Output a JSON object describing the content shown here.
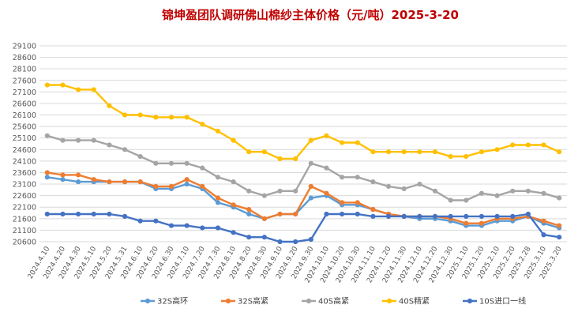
{
  "chart_data": {
    "type": "line",
    "title": "锦坤盈团队调研佛山棉纱主体价格（元/吨）2025-3-20",
    "xlabel": "",
    "ylabel": "",
    "ylim": [
      20600,
      29100
    ],
    "yticks": [
      20600,
      21100,
      21600,
      22100,
      22600,
      23100,
      23600,
      24100,
      24600,
      25100,
      25600,
      26100,
      26600,
      27100,
      27600,
      28100,
      28600,
      29100
    ],
    "grid": true,
    "legend_position": "bottom",
    "categories": [
      "2024.4.10",
      "2024.4.20",
      "2024.4.30",
      "2024.5.10",
      "2024.5.20",
      "2024.5.31",
      "2024.6.10",
      "2024.6.20",
      "2024.6.30",
      "2024.7.10",
      "2024.7.20",
      "2024.7.30",
      "2024.8.10",
      "2024.8.20",
      "2024.8.30",
      "2024.9.10",
      "2024.9.20",
      "2024.9.30",
      "2024.10.10",
      "2024.10.20",
      "2024.10.30",
      "2024.11.10",
      "2024.11.20",
      "2024.11.30",
      "2024.12.10",
      "2024.12.20",
      "2024.12.30",
      "2025.1.10",
      "2025.1.20",
      "2025.2.10",
      "2025.2.20",
      "2025.2.28",
      "2025.3.10",
      "2025.3.20"
    ],
    "series": [
      {
        "name": "32S高环",
        "color": "#5b9bd5",
        "values": [
          23400,
          23300,
          23200,
          23200,
          23200,
          23200,
          23200,
          22900,
          22900,
          23100,
          22900,
          22300,
          22100,
          21800,
          21600,
          21800,
          21800,
          22500,
          22600,
          22200,
          22200,
          22000,
          21800,
          21700,
          21600,
          21600,
          21500,
          21300,
          21300,
          21500,
          21500,
          21700,
          21400,
          21200
        ]
      },
      {
        "name": "32S高紧",
        "color": "#ed7d31",
        "values": [
          23600,
          23500,
          23500,
          23300,
          23200,
          23200,
          23200,
          23000,
          23000,
          23300,
          23000,
          22500,
          22200,
          22000,
          21600,
          21800,
          21800,
          23000,
          22700,
          22300,
          22300,
          22000,
          21800,
          21700,
          21700,
          21700,
          21600,
          21400,
          21400,
          21600,
          21600,
          21700,
          21500,
          21300
        ]
      },
      {
        "name": "40S高紧",
        "color": "#a5a5a5",
        "values": [
          25200,
          25000,
          25000,
          25000,
          24800,
          24600,
          24300,
          24000,
          24000,
          24000,
          23800,
          23400,
          23200,
          22800,
          22600,
          22800,
          22800,
          24000,
          23800,
          23400,
          23400,
          23200,
          23000,
          22900,
          23100,
          22800,
          22400,
          22400,
          22700,
          22600,
          22800,
          22800,
          22700,
          22500
        ]
      },
      {
        "name": "40S精紧",
        "color": "#ffc000",
        "values": [
          27400,
          27400,
          27200,
          27200,
          26500,
          26100,
          26100,
          26000,
          26000,
          26000,
          25700,
          25400,
          25000,
          24500,
          24500,
          24200,
          24200,
          25000,
          25200,
          24900,
          24900,
          24500,
          24500,
          24500,
          24500,
          24500,
          24300,
          24300,
          24500,
          24600,
          24800,
          24800,
          24800,
          24500
        ]
      },
      {
        "name": "10S进口一线",
        "color": "#4472c4",
        "values": [
          21800,
          21800,
          21800,
          21800,
          21800,
          21700,
          21500,
          21500,
          21300,
          21300,
          21200,
          21200,
          21000,
          20800,
          20800,
          20600,
          20600,
          20700,
          21800,
          21800,
          21800,
          21700,
          21700,
          21700,
          21700,
          21700,
          21700,
          21700,
          21700,
          21700,
          21700,
          21800,
          20900,
          20800
        ]
      }
    ]
  }
}
